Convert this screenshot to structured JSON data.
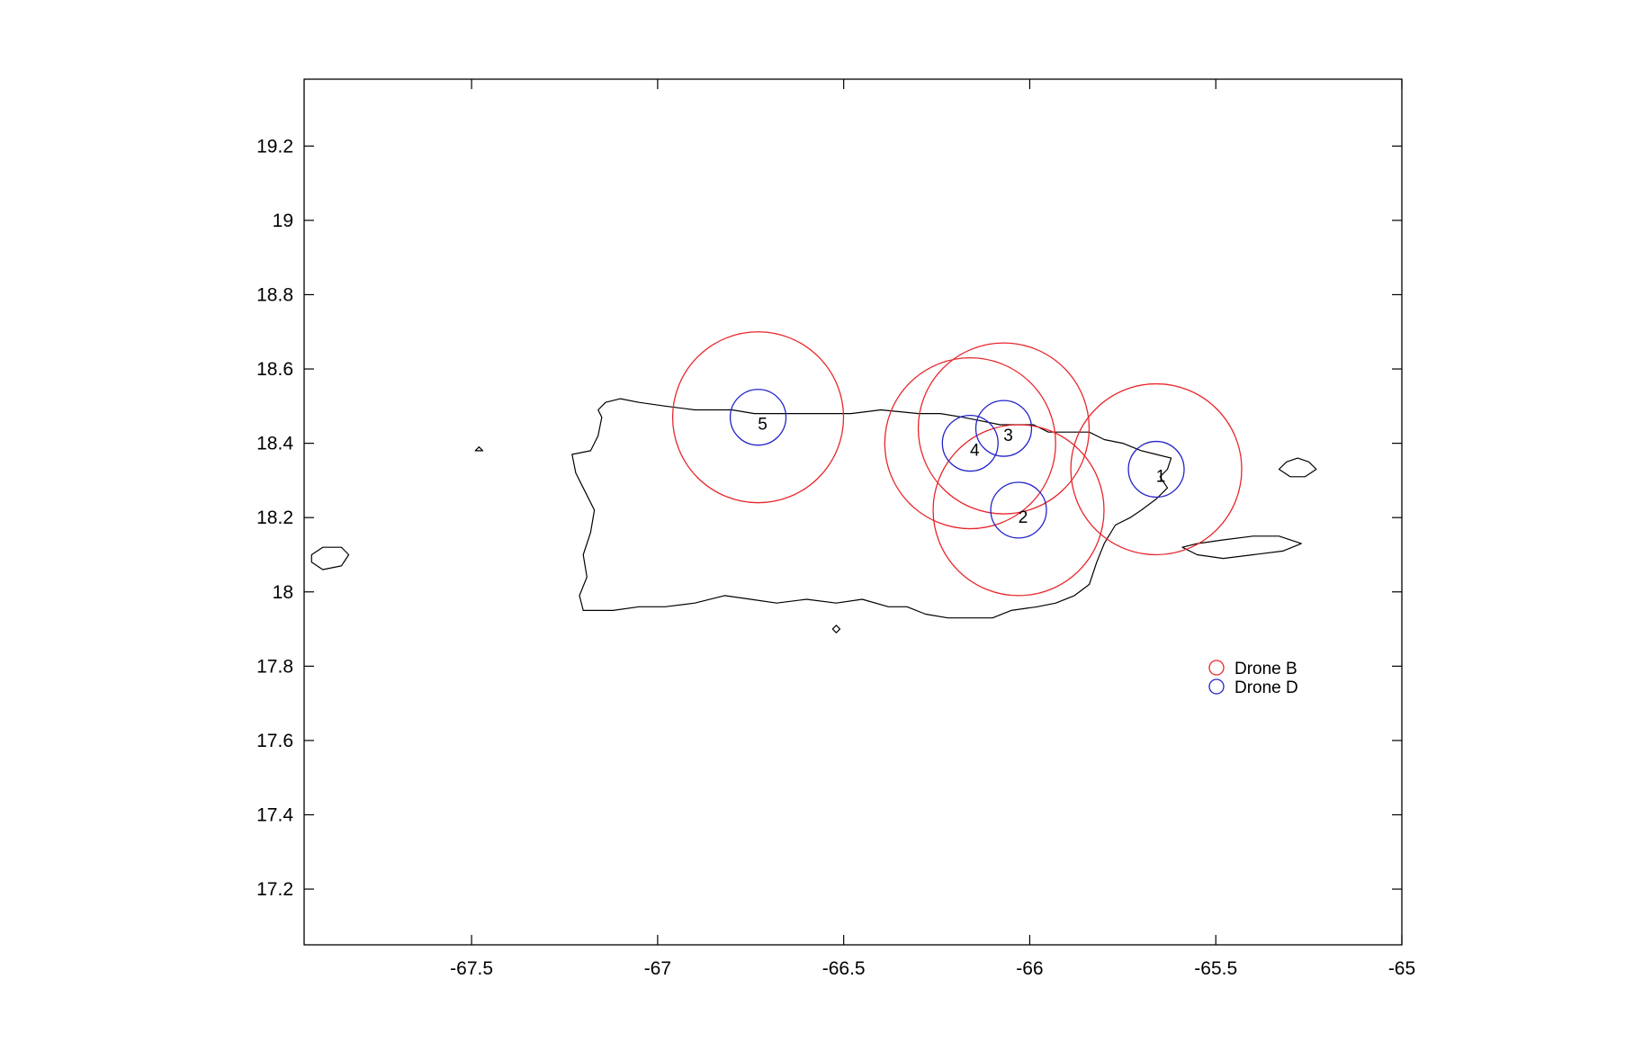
{
  "chart_data": {
    "type": "scatter",
    "title": "",
    "xlabel": "",
    "ylabel": "",
    "xlim": [
      -67.95,
      -65.0
    ],
    "ylim": [
      17.05,
      19.38
    ],
    "x_ticks": [
      -67.5,
      -67,
      -66.5,
      -66,
      -65.5,
      -65
    ],
    "x_tick_labels": [
      "-67.5",
      "-67",
      "-66.5",
      "-66",
      "-65.5",
      "-65"
    ],
    "y_ticks": [
      17.2,
      17.4,
      17.6,
      17.8,
      18,
      18.2,
      18.4,
      18.6,
      18.8,
      19,
      19.2
    ],
    "y_tick_labels": [
      "17.2",
      "17.4",
      "17.6",
      "17.8",
      "18",
      "18.2",
      "18.4",
      "18.6",
      "18.8",
      "19",
      "19.2"
    ],
    "grid": false,
    "legend_position": "lower-right",
    "series": [
      {
        "name": "Drone B",
        "color": "#e8262b",
        "marker": "circle",
        "radius_deg": 0.23,
        "centers": [
          {
            "x": -65.66,
            "y": 18.33
          },
          {
            "x": -66.03,
            "y": 18.22
          },
          {
            "x": -66.07,
            "y": 18.44
          },
          {
            "x": -66.16,
            "y": 18.4
          },
          {
            "x": -66.73,
            "y": 18.47
          }
        ]
      },
      {
        "name": "Drone D",
        "color": "#2323c8",
        "marker": "circle",
        "radius_deg": 0.075,
        "centers": [
          {
            "x": -65.66,
            "y": 18.33
          },
          {
            "x": -66.03,
            "y": 18.22
          },
          {
            "x": -66.07,
            "y": 18.44
          },
          {
            "x": -66.16,
            "y": 18.4
          },
          {
            "x": -66.73,
            "y": 18.47
          }
        ]
      }
    ],
    "site_labels": [
      {
        "text": "1",
        "x": -65.66,
        "y": 18.33
      },
      {
        "text": "2",
        "x": -66.03,
        "y": 18.22
      },
      {
        "text": "3",
        "x": -66.07,
        "y": 18.44
      },
      {
        "text": "4",
        "x": -66.16,
        "y": 18.4
      },
      {
        "text": "5",
        "x": -66.73,
        "y": 18.47
      }
    ],
    "coastline_color": "#000000",
    "coastlines": [
      {
        "name": "puerto-rico-main",
        "points": [
          [
            -67.23,
            18.37
          ],
          [
            -67.18,
            18.38
          ],
          [
            -67.16,
            18.42
          ],
          [
            -67.15,
            18.47
          ],
          [
            -67.16,
            18.49
          ],
          [
            -67.14,
            18.51
          ],
          [
            -67.1,
            18.52
          ],
          [
            -67.05,
            18.51
          ],
          [
            -66.98,
            18.5
          ],
          [
            -66.9,
            18.49
          ],
          [
            -66.8,
            18.49
          ],
          [
            -66.74,
            18.48
          ],
          [
            -66.65,
            18.48
          ],
          [
            -66.55,
            18.48
          ],
          [
            -66.48,
            18.48
          ],
          [
            -66.4,
            18.49
          ],
          [
            -66.3,
            18.48
          ],
          [
            -66.24,
            18.48
          ],
          [
            -66.18,
            18.47
          ],
          [
            -66.13,
            18.46
          ],
          [
            -66.08,
            18.45
          ],
          [
            -66.03,
            18.45
          ],
          [
            -65.99,
            18.45
          ],
          [
            -65.95,
            18.43
          ],
          [
            -65.9,
            18.43
          ],
          [
            -65.84,
            18.43
          ],
          [
            -65.8,
            18.41
          ],
          [
            -65.75,
            18.4
          ],
          [
            -65.7,
            18.38
          ],
          [
            -65.66,
            18.37
          ],
          [
            -65.62,
            18.36
          ],
          [
            -65.63,
            18.33
          ],
          [
            -65.65,
            18.31
          ],
          [
            -65.63,
            18.28
          ],
          [
            -65.66,
            18.25
          ],
          [
            -65.7,
            18.22
          ],
          [
            -65.73,
            18.2
          ],
          [
            -65.77,
            18.18
          ],
          [
            -65.8,
            18.13
          ],
          [
            -65.82,
            18.08
          ],
          [
            -65.84,
            18.02
          ],
          [
            -65.88,
            17.99
          ],
          [
            -65.93,
            17.97
          ],
          [
            -65.98,
            17.96
          ],
          [
            -66.05,
            17.95
          ],
          [
            -66.1,
            17.93
          ],
          [
            -66.16,
            17.93
          ],
          [
            -66.22,
            17.93
          ],
          [
            -66.28,
            17.94
          ],
          [
            -66.33,
            17.96
          ],
          [
            -66.38,
            17.96
          ],
          [
            -66.45,
            17.98
          ],
          [
            -66.52,
            17.97
          ],
          [
            -66.6,
            17.98
          ],
          [
            -66.68,
            17.97
          ],
          [
            -66.75,
            17.98
          ],
          [
            -66.82,
            17.99
          ],
          [
            -66.9,
            17.97
          ],
          [
            -66.98,
            17.96
          ],
          [
            -67.05,
            17.96
          ],
          [
            -67.12,
            17.95
          ],
          [
            -67.2,
            17.95
          ],
          [
            -67.21,
            17.99
          ],
          [
            -67.19,
            18.04
          ],
          [
            -67.2,
            18.1
          ],
          [
            -67.18,
            18.16
          ],
          [
            -67.17,
            18.22
          ],
          [
            -67.2,
            18.28
          ],
          [
            -67.22,
            18.32
          ],
          [
            -67.23,
            18.37
          ]
        ]
      },
      {
        "name": "vieques",
        "points": [
          [
            -65.59,
            18.12
          ],
          [
            -65.55,
            18.1
          ],
          [
            -65.48,
            18.09
          ],
          [
            -65.4,
            18.1
          ],
          [
            -65.32,
            18.11
          ],
          [
            -65.27,
            18.13
          ],
          [
            -65.33,
            18.15
          ],
          [
            -65.4,
            18.15
          ],
          [
            -65.48,
            18.14
          ],
          [
            -65.55,
            18.13
          ],
          [
            -65.59,
            18.12
          ]
        ]
      },
      {
        "name": "culebra",
        "points": [
          [
            -65.33,
            18.33
          ],
          [
            -65.31,
            18.35
          ],
          [
            -65.28,
            18.36
          ],
          [
            -65.25,
            18.35
          ],
          [
            -65.23,
            18.33
          ],
          [
            -65.26,
            18.31
          ],
          [
            -65.3,
            18.31
          ],
          [
            -65.33,
            18.33
          ]
        ]
      },
      {
        "name": "mona",
        "points": [
          [
            -67.93,
            18.1
          ],
          [
            -67.9,
            18.12
          ],
          [
            -67.85,
            18.12
          ],
          [
            -67.83,
            18.1
          ],
          [
            -67.85,
            18.07
          ],
          [
            -67.9,
            18.06
          ],
          [
            -67.93,
            18.08
          ],
          [
            -67.93,
            18.1
          ]
        ]
      },
      {
        "name": "desecheo",
        "points": [
          [
            -67.49,
            18.38
          ],
          [
            -67.48,
            18.39
          ],
          [
            -67.47,
            18.38
          ],
          [
            -67.48,
            18.38
          ],
          [
            -67.49,
            18.38
          ]
        ]
      },
      {
        "name": "caja-de-muertos",
        "points": [
          [
            -66.53,
            17.9
          ],
          [
            -66.52,
            17.91
          ],
          [
            -66.51,
            17.9
          ],
          [
            -66.52,
            17.89
          ],
          [
            -66.53,
            17.9
          ]
        ]
      }
    ]
  }
}
